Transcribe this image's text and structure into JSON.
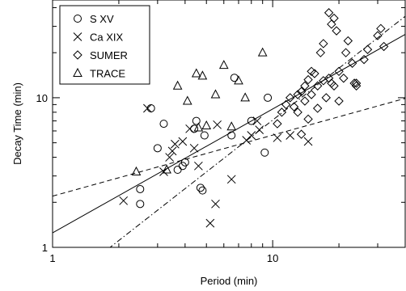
{
  "chart_data": {
    "type": "scatter",
    "xlabel": "Period (min)",
    "ylabel": "Decay Time (min)",
    "xscale": "log",
    "yscale": "log",
    "xlim": [
      1,
      40
    ],
    "ylim": [
      1,
      45
    ],
    "xticks": [
      1,
      10
    ],
    "yticks": [
      1,
      10
    ],
    "x_tick_labels": [
      "1",
      "10"
    ],
    "y_tick_labels": [
      "1",
      "10"
    ],
    "grid": false,
    "legend_position": "top-left",
    "color": "#000000",
    "series": [
      {
        "name": "S XV",
        "marker": "circle",
        "points": [
          [
            2.5,
            2.45
          ],
          [
            2.5,
            1.95
          ],
          [
            2.8,
            8.5
          ],
          [
            3.0,
            4.6
          ],
          [
            3.2,
            6.7
          ],
          [
            3.7,
            3.3
          ],
          [
            3.9,
            3.5
          ],
          [
            4.0,
            3.7
          ],
          [
            4.4,
            6.2
          ],
          [
            4.5,
            7.0
          ],
          [
            4.7,
            2.5
          ],
          [
            4.8,
            2.4
          ],
          [
            4.9,
            5.6
          ],
          [
            6.5,
            5.6
          ],
          [
            6.7,
            13.6
          ],
          [
            8.0,
            7.0
          ],
          [
            9.2,
            4.3
          ],
          [
            9.5,
            10.0
          ]
        ]
      },
      {
        "name": "Ca XIX",
        "marker": "x",
        "points": [
          [
            2.1,
            2.05
          ],
          [
            2.7,
            8.5
          ],
          [
            3.2,
            3.2
          ],
          [
            3.4,
            4.0
          ],
          [
            3.5,
            4.4
          ],
          [
            3.6,
            4.9
          ],
          [
            3.9,
            5.1
          ],
          [
            4.2,
            6.2
          ],
          [
            4.4,
            4.6
          ],
          [
            4.6,
            3.5
          ],
          [
            5.2,
            1.45
          ],
          [
            5.5,
            1.95
          ],
          [
            5.6,
            6.6
          ],
          [
            6.5,
            2.85
          ],
          [
            7.6,
            5.2
          ],
          [
            8.0,
            5.6
          ],
          [
            8.5,
            7.0
          ],
          [
            8.7,
            6.1
          ],
          [
            10.5,
            5.4
          ],
          [
            12.0,
            5.6
          ],
          [
            14.5,
            5.1
          ]
        ]
      },
      {
        "name": "SUMER",
        "marker": "diamond",
        "points": [
          [
            10.5,
            6.7
          ],
          [
            11.0,
            8.0
          ],
          [
            11.5,
            9.0
          ],
          [
            12.0,
            10.0
          ],
          [
            12.5,
            8.7
          ],
          [
            13.0,
            10.5
          ],
          [
            13.0,
            8.0
          ],
          [
            13.5,
            11.0
          ],
          [
            13.5,
            5.7
          ],
          [
            14.0,
            12.0
          ],
          [
            14.0,
            9.5
          ],
          [
            14.5,
            13.2
          ],
          [
            14.5,
            7.2
          ],
          [
            15.0,
            15.0
          ],
          [
            15.0,
            10.5
          ],
          [
            15.5,
            14.5
          ],
          [
            16.0,
            12.0
          ],
          [
            16.0,
            8.5
          ],
          [
            16.5,
            20.0
          ],
          [
            17.0,
            23.0
          ],
          [
            17.0,
            13.0
          ],
          [
            17.5,
            10.0
          ],
          [
            18.0,
            13.5
          ],
          [
            18.0,
            37.0
          ],
          [
            18.5,
            31.0
          ],
          [
            19.0,
            34.0
          ],
          [
            19.0,
            12.0
          ],
          [
            19.5,
            28.0
          ],
          [
            20.0,
            15.0
          ],
          [
            20.0,
            9.5
          ],
          [
            21.0,
            13.5
          ],
          [
            21.5,
            20.0
          ],
          [
            22.0,
            24.0
          ],
          [
            23.0,
            17.0
          ],
          [
            23.5,
            12.5
          ],
          [
            24.0,
            12.0
          ],
          [
            26.0,
            18.0
          ],
          [
            27.0,
            21.0
          ],
          [
            30.0,
            26.0
          ],
          [
            31.0,
            29.0
          ],
          [
            32.0,
            22.0
          ],
          [
            18.5,
            12.5
          ],
          [
            24.0,
            12.5
          ]
        ]
      },
      {
        "name": "TRACE",
        "marker": "triangle",
        "points": [
          [
            2.4,
            3.2
          ],
          [
            3.3,
            3.3
          ],
          [
            3.7,
            12.0
          ],
          [
            4.1,
            9.5
          ],
          [
            4.5,
            14.5
          ],
          [
            4.6,
            6.3
          ],
          [
            4.8,
            14.0
          ],
          [
            5.0,
            6.5
          ],
          [
            5.5,
            10.5
          ],
          [
            6.0,
            16.5
          ],
          [
            6.5,
            6.4
          ],
          [
            7.0,
            13.0
          ],
          [
            7.5,
            10.0
          ],
          [
            9.0,
            20.0
          ]
        ]
      }
    ],
    "fit_lines": [
      {
        "style": "solid",
        "x": [
          1,
          40
        ],
        "y": [
          1.25,
          26.5
        ]
      },
      {
        "style": "dashed",
        "x": [
          1,
          40
        ],
        "y": [
          2.2,
          9.9
        ]
      },
      {
        "style": "dash-dot",
        "x": [
          1,
          40
        ],
        "y": [
          0.5,
          35.0
        ]
      }
    ]
  }
}
